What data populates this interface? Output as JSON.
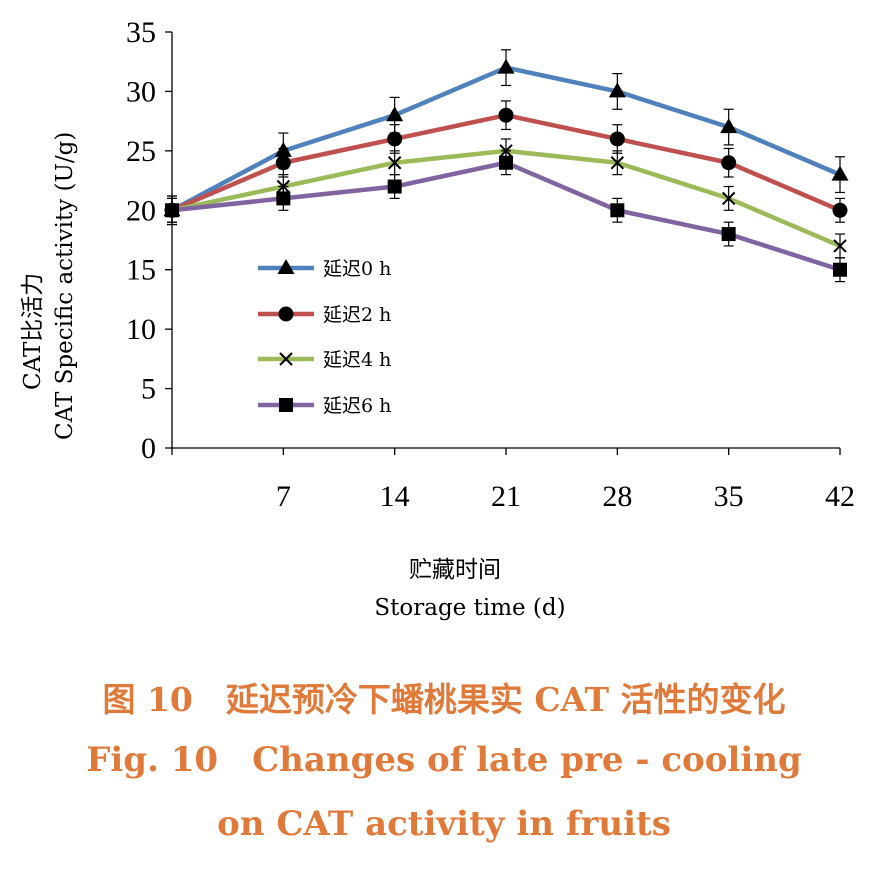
{
  "chart_data": {
    "type": "line",
    "title": "",
    "ylabel": [
      "CAT比活力",
      "CAT Specific activity (U/g)"
    ],
    "xlabel": [
      "贮藏时间",
      "Storage time (d)"
    ],
    "ylim": [
      0,
      35
    ],
    "yticks": [
      0,
      5,
      10,
      15,
      20,
      25,
      30,
      35
    ],
    "x": [
      0,
      7,
      14,
      21,
      28,
      35,
      42
    ],
    "x_tick_labels": [
      "",
      "7",
      "14",
      "21",
      "28",
      "35",
      "42"
    ],
    "grid": false,
    "legend_position": "left",
    "series": [
      {
        "name": "延迟0 h",
        "color": "#4f81bd",
        "marker": "triangle",
        "values": [
          20,
          25,
          28,
          32,
          30,
          27,
          23
        ],
        "errors": [
          1.2,
          1.5,
          1.5,
          1.5,
          1.5,
          1.5,
          1.5
        ]
      },
      {
        "name": "延迟2 h",
        "color": "#c0504d",
        "marker": "circle",
        "values": [
          20,
          24,
          26,
          28,
          26,
          24,
          20
        ],
        "errors": [
          1.2,
          1.2,
          1.2,
          1.2,
          1.2,
          1.2,
          1.0
        ]
      },
      {
        "name": "延迟4 h",
        "color": "#9bbb59",
        "marker": "cross",
        "values": [
          20,
          22,
          24,
          25,
          24,
          21,
          17
        ],
        "errors": [
          1.0,
          1.0,
          1.0,
          1.0,
          1.0,
          1.0,
          1.0
        ]
      },
      {
        "name": "延迟6 h",
        "color": "#8064a2",
        "marker": "square",
        "values": [
          20,
          21,
          22,
          24,
          20,
          18,
          15
        ],
        "errors": [
          1.0,
          1.0,
          1.0,
          1.0,
          1.0,
          1.0,
          1.0
        ]
      }
    ]
  },
  "caption": {
    "line1": "图 10　延迟预冷下蟠桃果实 CAT 活性的变化",
    "line2": "Fig. 10　Changes of late pre - cooling",
    "line3": "on CAT activity in fruits"
  }
}
